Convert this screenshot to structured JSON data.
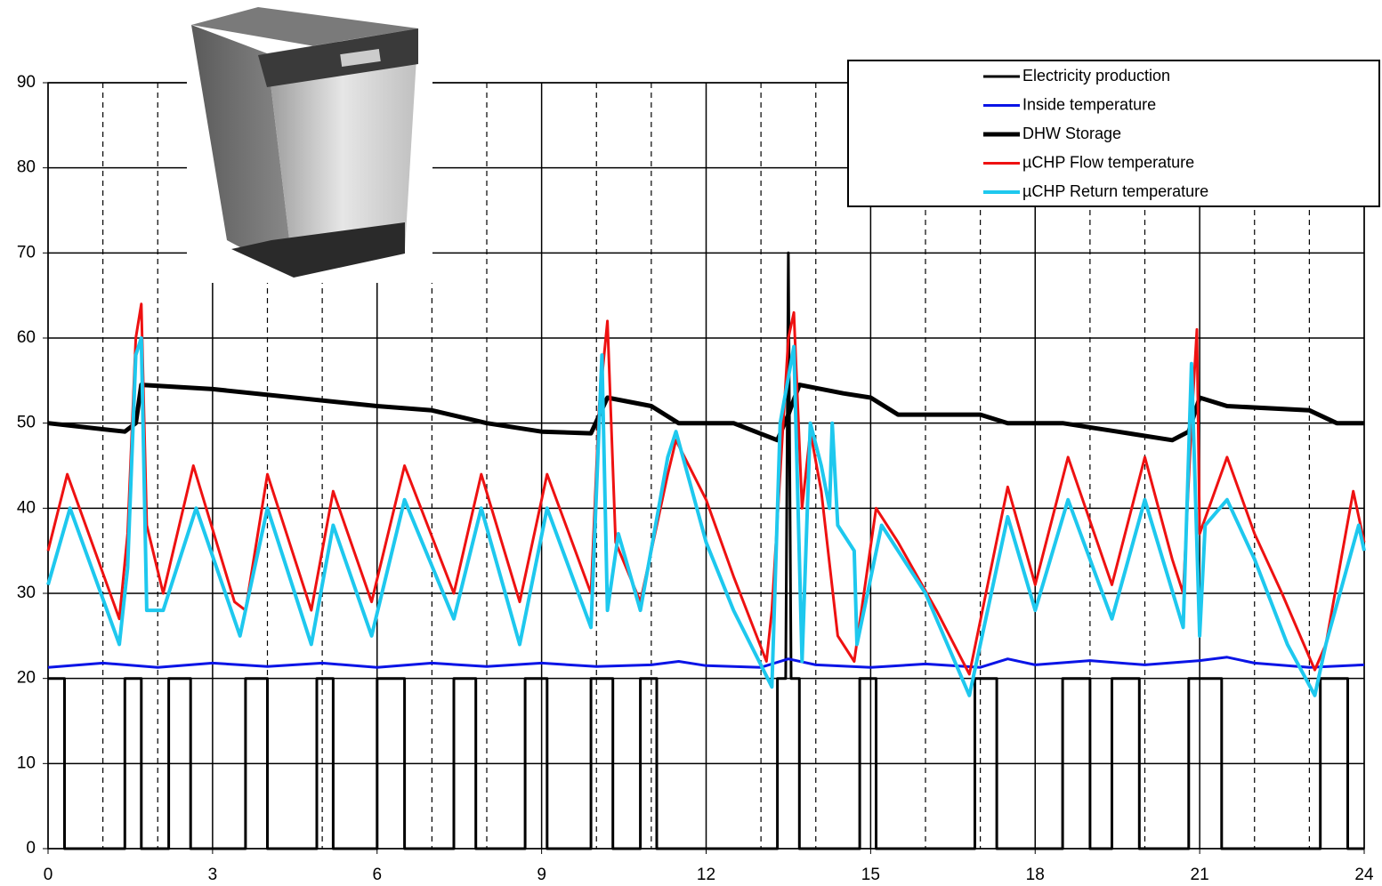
{
  "chart_data": {
    "type": "line",
    "xlim": [
      0,
      24
    ],
    "xticks": [
      0,
      3,
      6,
      9,
      12,
      15,
      18,
      21,
      24
    ],
    "xminorticks": [
      1,
      2,
      4,
      5,
      7,
      8,
      10,
      11,
      13,
      14,
      16,
      17,
      19,
      20,
      22,
      23
    ],
    "ylim": [
      0,
      90
    ],
    "yticks": [
      0,
      10,
      20,
      30,
      40,
      50,
      60,
      70,
      80,
      90
    ],
    "grid": true,
    "legend": "upper right",
    "series": [
      {
        "name": "Electricity production",
        "color": "#000000",
        "width": 3,
        "x": [
          0,
          0,
          0.3,
          0.3,
          1.4,
          1.4,
          1.7,
          1.7,
          2.2,
          2.2,
          2.6,
          2.6,
          3.6,
          3.6,
          4.0,
          4.0,
          4.9,
          4.9,
          5.2,
          5.2,
          6.0,
          6.0,
          6.5,
          6.5,
          7.4,
          7.4,
          7.8,
          7.8,
          8.7,
          8.7,
          9.1,
          9.1,
          9.9,
          9.9,
          10.3,
          10.3,
          10.8,
          10.8,
          11.1,
          11.1,
          13.3,
          13.3,
          13.45,
          13.5,
          13.55,
          13.7,
          13.7,
          14.8,
          14.8,
          15.1,
          15.1,
          16.9,
          16.9,
          17.3,
          17.3,
          18.5,
          18.5,
          19.0,
          19.0,
          19.4,
          19.4,
          19.9,
          19.9,
          20.8,
          20.8,
          21.4,
          21.4,
          23.2,
          23.2,
          23.7,
          23.7,
          24
        ],
        "values": [
          20,
          20,
          20,
          0,
          0,
          20,
          20,
          0,
          0,
          20,
          20,
          0,
          0,
          20,
          20,
          0,
          0,
          20,
          20,
          0,
          0,
          20,
          20,
          0,
          0,
          20,
          20,
          0,
          0,
          20,
          20,
          0,
          0,
          20,
          20,
          0,
          0,
          20,
          20,
          0,
          0,
          20,
          20,
          70,
          20,
          20,
          0,
          0,
          20,
          20,
          0,
          0,
          20,
          20,
          0,
          0,
          20,
          20,
          0,
          0,
          20,
          20,
          0,
          0,
          20,
          20,
          0,
          0,
          20,
          20,
          0,
          0
        ]
      },
      {
        "name": "Inside temperature",
        "color": "#0a14e6",
        "width": 3,
        "x": [
          0,
          1,
          2,
          3,
          4,
          5,
          6,
          7,
          8,
          9,
          10,
          11,
          11.5,
          12,
          13,
          13.5,
          14,
          15,
          16,
          17,
          17.5,
          18,
          19,
          20,
          21,
          21.5,
          22,
          23,
          24
        ],
        "values": [
          21.3,
          21.8,
          21.3,
          21.8,
          21.4,
          21.8,
          21.3,
          21.8,
          21.4,
          21.8,
          21.4,
          21.6,
          22,
          21.5,
          21.3,
          22.3,
          21.6,
          21.3,
          21.7,
          21.3,
          22.3,
          21.6,
          22.1,
          21.6,
          22.1,
          22.5,
          21.8,
          21.3,
          21.6
        ]
      },
      {
        "name": "DHW Storage",
        "color": "#000000",
        "width": 5,
        "x": [
          0,
          1.4,
          1.6,
          1.7,
          3,
          4.5,
          6,
          7,
          8,
          9,
          9.9,
          10.2,
          11,
          11.5,
          12.5,
          13.3,
          13.5,
          13.7,
          14.5,
          15,
          15.5,
          17,
          17.5,
          18.5,
          19.5,
          20.5,
          20.8,
          21,
          21.5,
          23,
          23.5,
          24
        ],
        "values": [
          50,
          49,
          50,
          54.5,
          54,
          53,
          52,
          51.5,
          50,
          49,
          48.8,
          53,
          52,
          50,
          50,
          48,
          51,
          54.5,
          53.5,
          53,
          51,
          51,
          50,
          50,
          49,
          48,
          49,
          53,
          52,
          51.5,
          50,
          50
        ]
      },
      {
        "name": "µCHP Flow temperature",
        "color": "#ee1111",
        "width": 3,
        "x": [
          0,
          0.35,
          1.3,
          1.45,
          1.6,
          1.7,
          1.8,
          2.1,
          2.65,
          3.4,
          3.6,
          4.0,
          4.8,
          5.2,
          5.9,
          6.5,
          7.4,
          7.9,
          8.6,
          9.1,
          9.9,
          10.05,
          10.2,
          10.35,
          10.8,
          11.3,
          11.45,
          12,
          12.5,
          13.1,
          13.2,
          13.5,
          13.6,
          13.75,
          13.9,
          14.1,
          14.4,
          14.7,
          15.1,
          15.5,
          16.2,
          16.8,
          17.5,
          18,
          18.6,
          19.4,
          20,
          20.5,
          20.7,
          20.85,
          20.95,
          21,
          21.5,
          22,
          22.5,
          23.1,
          23.3,
          23.8,
          24
        ],
        "values": [
          35,
          44,
          27,
          37,
          60,
          64,
          38,
          30,
          45,
          29,
          28,
          44,
          28,
          42,
          29,
          45,
          30,
          44,
          29,
          44,
          30,
          52,
          62,
          36,
          29,
          44,
          48,
          41,
          32,
          22,
          28,
          60,
          63,
          40,
          49,
          42,
          25,
          22,
          40,
          36,
          28,
          20.5,
          42.5,
          31,
          46,
          31,
          46,
          34,
          30,
          50,
          61,
          37,
          46,
          37,
          30,
          21,
          24,
          42,
          36
        ]
      },
      {
        "name": "µCHP Return temperature",
        "color": "#1ec8ee",
        "width": 4,
        "x": [
          0,
          0.4,
          1.3,
          1.45,
          1.6,
          1.7,
          1.8,
          2.1,
          2.7,
          3.5,
          4.0,
          4.8,
          5.2,
          5.9,
          6.5,
          7.4,
          7.9,
          8.6,
          9.1,
          9.9,
          10.1,
          10.2,
          10.4,
          10.8,
          11.3,
          11.45,
          12,
          12.5,
          13.2,
          13.35,
          13.6,
          13.75,
          13.9,
          14.1,
          14.25,
          14.3,
          14.4,
          14.7,
          14.75,
          15.2,
          16,
          16.8,
          17.5,
          18,
          18.6,
          19.4,
          20,
          20.7,
          20.85,
          21,
          21.1,
          21.5,
          22,
          22.6,
          23.1,
          23.3,
          23.9,
          24
        ],
        "values": [
          31,
          40,
          24,
          33,
          58,
          60,
          28,
          28,
          40,
          25,
          40,
          24,
          38,
          25,
          41,
          27,
          40,
          24,
          40,
          26,
          58,
          28,
          37,
          28,
          46,
          49,
          36,
          28,
          19,
          50,
          59,
          22,
          50,
          45,
          40,
          50,
          38,
          35,
          24,
          38,
          30,
          18,
          39,
          28,
          41,
          27,
          41,
          26,
          57,
          25,
          38,
          41,
          34,
          24,
          18,
          24,
          38,
          35
        ]
      }
    ]
  }
}
